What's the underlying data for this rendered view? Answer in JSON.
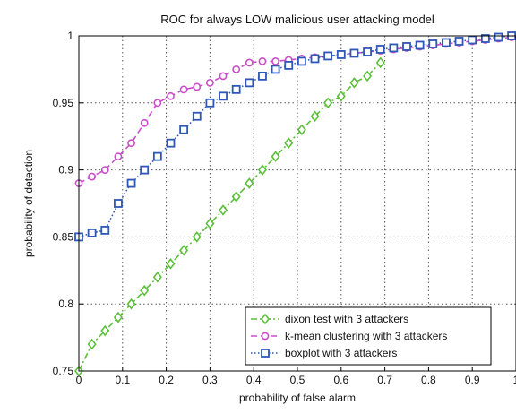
{
  "chart_data": {
    "type": "line",
    "title": "ROC for always LOW malicious user attacking model",
    "xlabel": "probability of false alarm",
    "ylabel": "probability of detection",
    "xlim": [
      0,
      1
    ],
    "ylim": [
      0.75,
      1
    ],
    "xticks": [
      "0",
      "0.1",
      "0.2",
      "0.3",
      "0.4",
      "0.5",
      "0.6",
      "0.7",
      "0.8",
      "0.9",
      "1"
    ],
    "yticks": [
      "0.75",
      "0.8",
      "0.85",
      "0.9",
      "0.95",
      "1"
    ],
    "grid": true,
    "legend_position": "bottom-right",
    "series": [
      {
        "name": "dixon test with 3 attackers",
        "color": "#5cbf3a",
        "marker": "diamond",
        "line": "dash-dot",
        "x": [
          0.0,
          0.03,
          0.06,
          0.09,
          0.12,
          0.15,
          0.18,
          0.21,
          0.24,
          0.27,
          0.3,
          0.33,
          0.36,
          0.39,
          0.42,
          0.45,
          0.48,
          0.51,
          0.54,
          0.57,
          0.6,
          0.63,
          0.66,
          0.69
        ],
        "y": [
          0.75,
          0.77,
          0.78,
          0.79,
          0.8,
          0.81,
          0.82,
          0.83,
          0.84,
          0.85,
          0.86,
          0.87,
          0.88,
          0.89,
          0.9,
          0.91,
          0.92,
          0.93,
          0.94,
          0.95,
          0.955,
          0.965,
          0.97,
          0.98
        ]
      },
      {
        "name": "k-mean clustering with 3 attackers",
        "color": "#c94fc9",
        "marker": "circle",
        "line": "dashed",
        "x": [
          0.0,
          0.03,
          0.06,
          0.09,
          0.12,
          0.15,
          0.18,
          0.21,
          0.24,
          0.27,
          0.3,
          0.33,
          0.36,
          0.39,
          0.42,
          0.45,
          0.48,
          0.51,
          0.54,
          0.57,
          0.6,
          0.63,
          0.66,
          0.69,
          0.72,
          0.75,
          0.78,
          0.81,
          0.84,
          0.87,
          0.9,
          0.93,
          0.96,
          0.99
        ],
        "y": [
          0.89,
          0.895,
          0.9,
          0.91,
          0.92,
          0.935,
          0.95,
          0.955,
          0.96,
          0.962,
          0.965,
          0.97,
          0.975,
          0.98,
          0.981,
          0.981,
          0.982,
          0.983,
          0.984,
          0.985,
          0.986,
          0.987,
          0.988,
          0.989,
          0.99,
          0.991,
          0.992,
          0.993,
          0.994,
          0.995,
          0.996,
          0.997,
          0.998,
          0.999
        ]
      },
      {
        "name": "boxplot with 3 attackers",
        "color": "#2e57b8",
        "marker": "square",
        "line": "dotted",
        "x": [
          0.0,
          0.03,
          0.06,
          0.09,
          0.12,
          0.15,
          0.18,
          0.21,
          0.24,
          0.27,
          0.3,
          0.33,
          0.36,
          0.39,
          0.42,
          0.45,
          0.48,
          0.51,
          0.54,
          0.57,
          0.6,
          0.63,
          0.66,
          0.69,
          0.72,
          0.75,
          0.78,
          0.81,
          0.84,
          0.87,
          0.9,
          0.93,
          0.96,
          0.99
        ],
        "y": [
          0.85,
          0.853,
          0.855,
          0.875,
          0.89,
          0.9,
          0.91,
          0.92,
          0.93,
          0.94,
          0.95,
          0.955,
          0.96,
          0.965,
          0.97,
          0.975,
          0.978,
          0.981,
          0.983,
          0.985,
          0.986,
          0.987,
          0.988,
          0.99,
          0.991,
          0.992,
          0.993,
          0.994,
          0.995,
          0.996,
          0.997,
          0.998,
          0.999,
          1.0
        ]
      }
    ]
  }
}
